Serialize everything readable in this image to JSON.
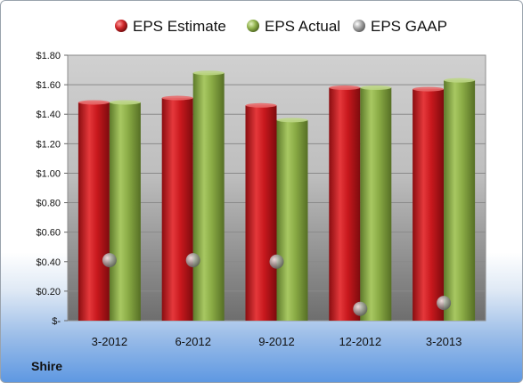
{
  "company": "Shire",
  "chart_data": {
    "type": "bar",
    "title": "",
    "xlabel": "",
    "ylabel": "",
    "categories": [
      "3-2012",
      "6-2012",
      "9-2012",
      "12-2012",
      "3-2013"
    ],
    "series": [
      {
        "name": "EPS Estimate",
        "kind": "bar",
        "color": "#c8181d",
        "values": [
          1.48,
          1.51,
          1.46,
          1.58,
          1.57
        ]
      },
      {
        "name": "EPS Actual",
        "kind": "bar",
        "color": "#8aab45",
        "values": [
          1.48,
          1.68,
          1.36,
          1.58,
          1.63
        ]
      },
      {
        "name": "EPS GAAP",
        "kind": "marker",
        "color": "#9a9a9a",
        "values": [
          0.41,
          0.41,
          0.4,
          0.08,
          0.12
        ]
      }
    ],
    "ylim": [
      0,
      1.8
    ],
    "yticks": [
      {
        "value": 0,
        "label": "$-"
      },
      {
        "value": 0.2,
        "label": "$0.20"
      },
      {
        "value": 0.4,
        "label": "$0.40"
      },
      {
        "value": 0.6,
        "label": "$0.60"
      },
      {
        "value": 0.8,
        "label": "$0.80"
      },
      {
        "value": 1.0,
        "label": "$1.00"
      },
      {
        "value": 1.2,
        "label": "$1.20"
      },
      {
        "value": 1.4,
        "label": "$1.40"
      },
      {
        "value": 1.6,
        "label": "$1.60"
      },
      {
        "value": 1.8,
        "label": "$1.80"
      }
    ],
    "grid": true,
    "legend_position": "top"
  }
}
